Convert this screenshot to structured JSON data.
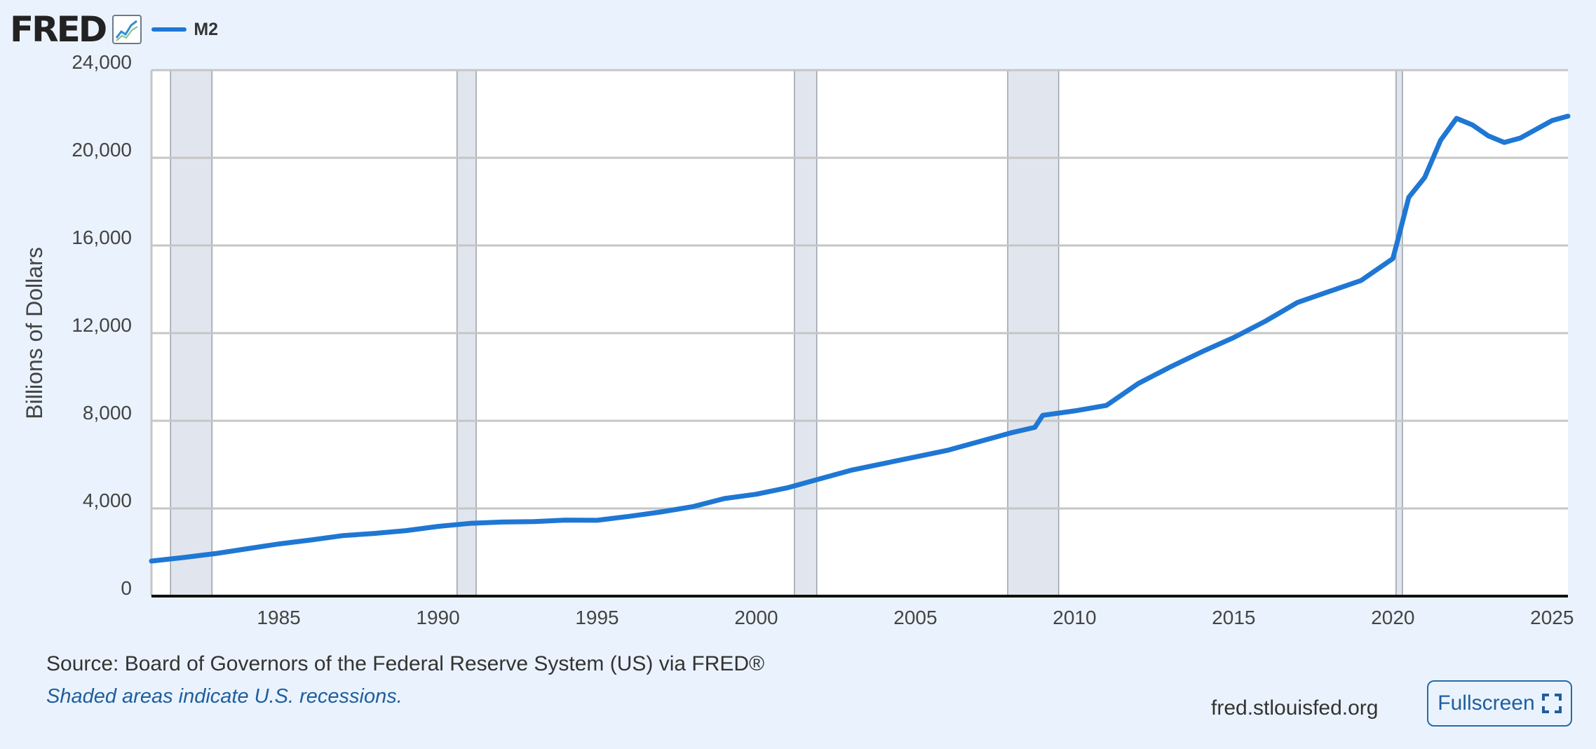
{
  "header": {
    "logo_text": "FRED",
    "logo_icon": "line-chart-icon"
  },
  "chart_data": {
    "type": "line",
    "title": "",
    "xlabel": "",
    "ylabel": "Billions of Dollars",
    "xlim": [
      1981.0,
      2025.5
    ],
    "ylim": [
      0,
      24000
    ],
    "grid": true,
    "legend_position": "top-left",
    "y_ticks": [
      0,
      4000,
      8000,
      12000,
      16000,
      20000,
      24000
    ],
    "y_tick_labels": [
      "0",
      "4,000",
      "8,000",
      "12,000",
      "16,000",
      "20,000",
      "24,000"
    ],
    "x_ticks": [
      1985,
      1990,
      1995,
      2000,
      2005,
      2010,
      2015,
      2020,
      2025
    ],
    "x_tick_labels": [
      "1985",
      "1990",
      "1995",
      "2000",
      "2005",
      "2010",
      "2015",
      "2020",
      "2025"
    ],
    "recessions": [
      {
        "start": 1981.6,
        "end": 1982.9
      },
      {
        "start": 1990.6,
        "end": 1991.2
      },
      {
        "start": 2001.2,
        "end": 2001.9
      },
      {
        "start": 2007.9,
        "end": 2009.5
      },
      {
        "start": 2020.1,
        "end": 2020.3
      }
    ],
    "series": [
      {
        "name": "M2",
        "color": "#1f77d4",
        "x": [
          1981.0,
          1982.0,
          1983.0,
          1984.0,
          1985.0,
          1986.0,
          1987.0,
          1988.0,
          1989.0,
          1990.0,
          1991.0,
          1992.0,
          1993.0,
          1994.0,
          1995.0,
          1996.0,
          1997.0,
          1998.0,
          1999.0,
          2000.0,
          2001.0,
          2002.0,
          2003.0,
          2004.0,
          2005.0,
          2006.0,
          2007.0,
          2008.0,
          2008.75,
          2009.0,
          2010.0,
          2011.0,
          2012.0,
          2013.0,
          2014.0,
          2015.0,
          2016.0,
          2017.0,
          2018.0,
          2019.0,
          2020.0,
          2020.2,
          2020.5,
          2021.0,
          2021.5,
          2022.0,
          2022.5,
          2023.0,
          2023.5,
          2024.0,
          2024.5,
          2025.0,
          2025.5
        ],
        "values": [
          1600,
          1760,
          1940,
          2160,
          2380,
          2560,
          2760,
          2860,
          2990,
          3180,
          3320,
          3380,
          3400,
          3470,
          3460,
          3640,
          3840,
          4080,
          4450,
          4650,
          4950,
          5350,
          5750,
          6050,
          6350,
          6650,
          7050,
          7450,
          7700,
          8250,
          8450,
          8700,
          9700,
          10450,
          11150,
          11800,
          12550,
          13400,
          13900,
          14400,
          15400,
          16500,
          18200,
          19100,
          20800,
          21800,
          21500,
          21000,
          20700,
          20900,
          21300,
          21700,
          21900
        ]
      }
    ]
  },
  "footer": {
    "source": "Source: Board of Governors of the Federal Reserve System (US) via FRED®",
    "note": "Shaded areas indicate U.S. recessions.",
    "site": "fred.stlouisfed.org",
    "fullscreen_label": "Fullscreen",
    "fullscreen_icon": "expand-icon"
  }
}
